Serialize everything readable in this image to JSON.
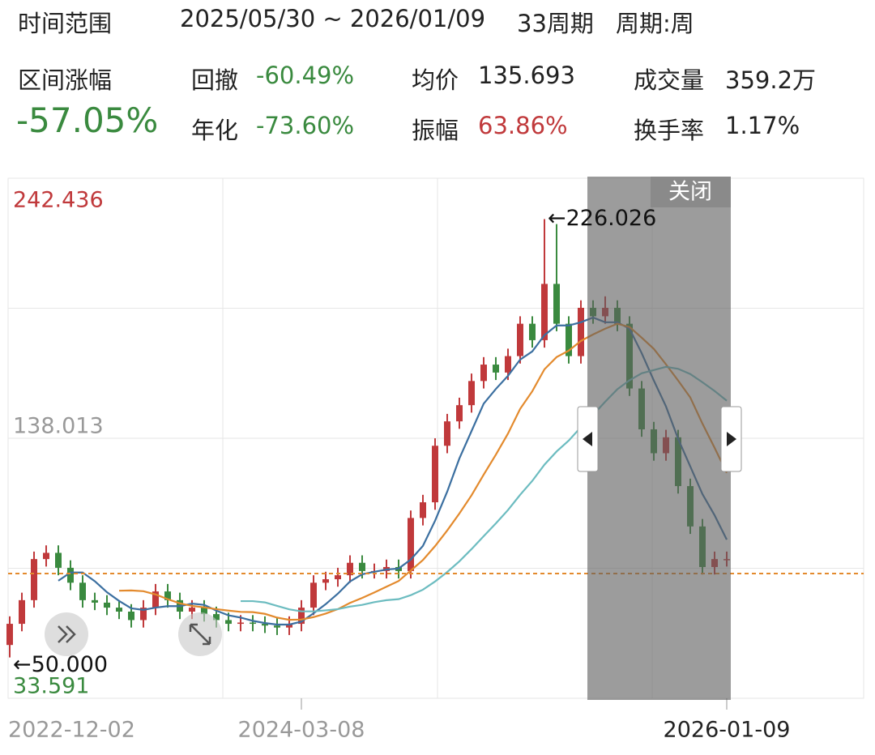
{
  "header": {
    "range_label": "时间范围",
    "range": "2025/05/30 ~ 2026/01/09",
    "periods": "33周期",
    "period": "周期:周"
  },
  "stats": {
    "change_label": "区间涨幅",
    "change": "-57.05%",
    "drawdown_label": "回撤",
    "drawdown": "-60.49%",
    "annual_label": "年化",
    "annual": "-73.60%",
    "avg_label": "均价",
    "avg": "135.693",
    "amp_label": "振幅",
    "amp": "63.86%",
    "vol_label": "成交量",
    "vol": "359.2万",
    "turnover_label": "换手率",
    "turnover": "1.17%"
  },
  "close_button": "关闭",
  "chart_data": {
    "type": "candlestick",
    "categories": [
      "2022-12-02",
      null,
      null,
      null,
      null,
      null,
      null,
      null,
      null,
      null,
      null,
      null,
      null,
      null,
      null,
      null,
      null,
      null,
      null,
      null,
      null,
      null,
      null,
      null,
      "2024-03-08",
      null,
      null,
      null,
      null,
      null,
      null,
      null,
      null,
      null,
      null,
      null,
      null,
      null,
      null,
      null,
      null,
      null,
      null,
      null,
      null,
      null,
      null,
      null,
      null,
      null,
      null,
      null,
      null,
      null,
      null,
      null,
      null,
      null,
      null,
      "2026-01-09"
    ],
    "open": [
      55,
      63.5,
      73,
      89.5,
      92,
      86,
      80,
      73,
      72,
      70,
      68.4,
      65,
      70,
      76.5,
      73,
      68.4,
      70,
      67.4,
      65,
      63.5,
      64,
      63.5,
      62.8,
      62,
      63.5,
      70,
      80,
      81.4,
      83,
      88,
      84.7,
      84.7,
      86.3,
      84.7,
      106,
      112.3,
      135,
      144.8,
      151.3,
      161,
      167.6,
      164.4,
      171,
      184,
      177.4,
      200,
      184,
      171,
      190.4,
      187,
      190.4,
      184,
      158,
      141.6,
      132,
      138.4,
      118.8,
      102.6,
      86.3,
      89.5
    ],
    "high": [
      66.5,
      76,
      92.5,
      95,
      95,
      89,
      83,
      76,
      75,
      73,
      71.4,
      73,
      79.5,
      79.5,
      76,
      73,
      73,
      70.4,
      68,
      67,
      67,
      66.5,
      65.8,
      66.5,
      73,
      83,
      84.4,
      86,
      91,
      91,
      87.7,
      89.3,
      89.3,
      109,
      115.3,
      138,
      147.8,
      154.3,
      164,
      170.6,
      170.6,
      174,
      187,
      187,
      226.026,
      224,
      187,
      193.4,
      193.4,
      195,
      193.4,
      187,
      161,
      144.6,
      141.4,
      141.4,
      121.8,
      105.6,
      92.5,
      92.5
    ],
    "low": [
      50.0,
      60.5,
      70,
      86.5,
      83,
      77,
      70,
      69,
      67,
      65.4,
      62,
      62,
      67,
      70,
      65.4,
      65.4,
      64.4,
      62,
      60.5,
      60.5,
      60.5,
      59.8,
      59,
      59,
      60.5,
      67,
      77,
      78.4,
      80,
      81.7,
      81.7,
      81.7,
      81.7,
      81.7,
      103,
      109.3,
      132,
      141.8,
      148.3,
      158,
      161.4,
      161.4,
      168,
      174.4,
      174.4,
      181,
      168,
      168,
      184,
      184,
      181,
      155,
      138.6,
      129,
      129,
      115.8,
      99.6,
      83.3,
      83.3,
      86.5
    ],
    "close": [
      63.5,
      73,
      89.5,
      92,
      86,
      80,
      73,
      72,
      70,
      68.4,
      65,
      70,
      76.5,
      73,
      68.4,
      70,
      67.4,
      65,
      63.5,
      64,
      63.5,
      62.8,
      62,
      63.5,
      70,
      80,
      81.4,
      83,
      88,
      84.7,
      84.7,
      86.3,
      84.7,
      106,
      112.3,
      135,
      144.8,
      151.3,
      161,
      167.6,
      164.4,
      171,
      184,
      177.4,
      200,
      184,
      171,
      190.4,
      187,
      190.4,
      184,
      158,
      141.6,
      132,
      138.4,
      118.8,
      102.6,
      86.3,
      89.5,
      89.5
    ],
    "up_color": "#c0393b",
    "down_color": "#3a8a3f",
    "series": [
      {
        "color": "#3b6fa0",
        "values": [
          null,
          null,
          null,
          null,
          80.8,
          84.1,
          84.1,
          80.6,
          76.2,
          72.7,
          69.7,
          69.1,
          70.0,
          70.6,
          70.6,
          71.6,
          71.1,
          68.8,
          66.9,
          66.0,
          64.7,
          63.8,
          63.2,
          63.2,
          64.4,
          67.7,
          71.4,
          75.6,
          80.5,
          83.4,
          84.4,
          85.3,
          85.7,
          89.3,
          94.8,
          104.9,
          116.6,
          129.9,
          140.9,
          151.9,
          157.8,
          163.1,
          169.6,
          172.9,
          179.4,
          183.3,
          183.3,
          184.6,
          186.5,
          184.6,
          184.6,
          182.0,
          172.2,
          161.2,
          150.8,
          137.8,
          126.7,
          115.6,
          107.1,
          97.3
        ]
      },
      {
        "color": "#e38a2d",
        "values": [
          null,
          null,
          null,
          null,
          null,
          null,
          null,
          null,
          null,
          76.8,
          76.9,
          76.6,
          75.3,
          73.4,
          71.7,
          70.7,
          70.1,
          69.4,
          68.8,
          68.3,
          68.2,
          67.5,
          66.0,
          65.1,
          65.2,
          66.2,
          67.6,
          69.4,
          71.9,
          73.9,
          76.1,
          78.4,
          80.7,
          84.9,
          89.1,
          94.7,
          101.0,
          107.8,
          115.1,
          123.4,
          131.4,
          139.9,
          149.8,
          156.9,
          165.7,
          170.6,
          173.2,
          177.1,
          179.7,
          182.0,
          184.0,
          182.7,
          178.4,
          173.9,
          167.7,
          161.2,
          154.4,
          143.9,
          134.2,
          124.1
        ]
      },
      {
        "color": "#6cbcc0",
        "values": [
          null,
          null,
          null,
          null,
          null,
          null,
          null,
          null,
          null,
          null,
          null,
          null,
          null,
          null,
          null,
          null,
          null,
          null,
          null,
          72.6,
          72.6,
          72.1,
          70.7,
          69.3,
          68.5,
          68.5,
          68.9,
          69.4,
          70.4,
          71.1,
          72.2,
          73.0,
          73.4,
          75.0,
          77.2,
          80.5,
          84.3,
          88.6,
          93.5,
          98.7,
          103.8,
          109.2,
          115.3,
          120.9,
          127.4,
          132.7,
          137.1,
          142.5,
          147.4,
          152.7,
          157.7,
          161.3,
          164.1,
          165.4,
          166.7,
          165.9,
          163.8,
          160.5,
          157.0,
          153.1
        ]
      }
    ],
    "price_line": 83.7,
    "price_line_color": "#e38a2d",
    "max_label": "←226.026",
    "min_label": "←50.000",
    "ylim": [
      33.591,
      242.436
    ],
    "yticks": [
      33.591,
      138.013,
      242.436
    ],
    "grid": true
  }
}
